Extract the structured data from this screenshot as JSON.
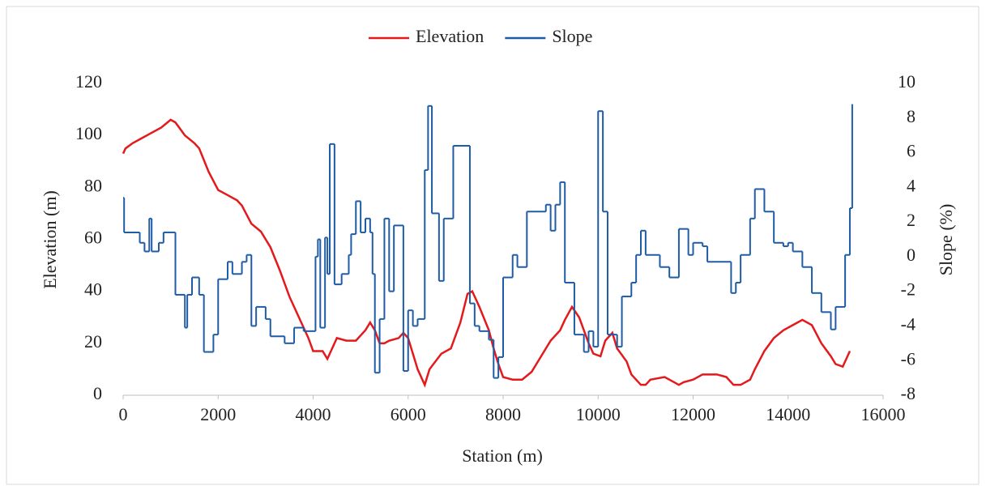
{
  "chart_data": {
    "type": "line",
    "x_label": "Station (m)",
    "y_label": "Elevation (m)",
    "y2_label": "Slope (%)",
    "xlim": [
      0,
      16000
    ],
    "xticks": [
      0,
      2000,
      4000,
      6000,
      8000,
      10000,
      12000,
      14000,
      16000
    ],
    "ylim": [
      0,
      120
    ],
    "yticks": [
      0,
      20,
      40,
      60,
      80,
      100,
      120
    ],
    "y2lim": [
      -8,
      10
    ],
    "y2ticks": [
      -8,
      -6,
      -4,
      -2,
      0,
      2,
      4,
      6,
      8,
      10
    ],
    "legend": "top",
    "series": [
      {
        "name": "Elevation",
        "color": "#e3191c",
        "style": "line",
        "x": [
          0,
          50,
          200,
          400,
          600,
          800,
          1000,
          1100,
          1300,
          1500,
          1600,
          1800,
          2000,
          2200,
          2400,
          2500,
          2700,
          2900,
          3100,
          3300,
          3500,
          3700,
          3900,
          4000,
          4200,
          4300,
          4400,
          4500,
          4700,
          4900,
          5100,
          5200,
          5300,
          5400,
          5500,
          5600,
          5800,
          5900,
          6000,
          6100,
          6200,
          6350,
          6450,
          6700,
          6900,
          7100,
          7250,
          7350,
          7500,
          7700,
          7800,
          7900,
          8000,
          8200,
          8400,
          8600,
          8800,
          9000,
          9200,
          9300,
          9450,
          9600,
          9800,
          9900,
          10050,
          10150,
          10300,
          10400,
          10600,
          10700,
          10900,
          11000,
          11100,
          11400,
          11600,
          11700,
          11800,
          12000,
          12200,
          12500,
          12700,
          12850,
          13000,
          13200,
          13300,
          13500,
          13700,
          13900,
          14100,
          14300,
          14500,
          14700,
          14900,
          15000,
          15150,
          15300
        ],
        "values": [
          93,
          95,
          97,
          99,
          101,
          103,
          106,
          105,
          100,
          97,
          95,
          86,
          79,
          77,
          75,
          73,
          66,
          63,
          57,
          48,
          38,
          30,
          22,
          17,
          17,
          14,
          18,
          22,
          21,
          21,
          25,
          28,
          25,
          20,
          20,
          21,
          22,
          24,
          22,
          16,
          10,
          4,
          10,
          16,
          18,
          28,
          39,
          40,
          34,
          25,
          18,
          12,
          7,
          6,
          6,
          9,
          15,
          21,
          25,
          29,
          34,
          30,
          20,
          16,
          15,
          21,
          24,
          18,
          13,
          8,
          4,
          4,
          6,
          7,
          5,
          4,
          5,
          6,
          8,
          8,
          7,
          4,
          4,
          6,
          10,
          17,
          22,
          25,
          27,
          29,
          27,
          20,
          15,
          12,
          11,
          17
        ]
      },
      {
        "name": "Slope",
        "color": "#1f5ca6",
        "style": "step",
        "axis": "y2",
        "x": [
          0,
          20,
          350,
          450,
          550,
          600,
          750,
          850,
          1100,
          1300,
          1350,
          1450,
          1600,
          1700,
          1900,
          2000,
          2200,
          2300,
          2500,
          2600,
          2700,
          2800,
          3000,
          3100,
          3400,
          3600,
          3800,
          4050,
          4100,
          4150,
          4250,
          4300,
          4350,
          4450,
          4600,
          4750,
          4800,
          4900,
          5000,
          5100,
          5200,
          5250,
          5300,
          5400,
          5500,
          5600,
          5700,
          5900,
          6000,
          6100,
          6200,
          6350,
          6420,
          6500,
          6650,
          6750,
          6950,
          7300,
          7400,
          7500,
          7700,
          7800,
          7900,
          8000,
          8200,
          8300,
          8500,
          8900,
          9000,
          9100,
          9200,
          9300,
          9500,
          9700,
          9800,
          9900,
          10000,
          10100,
          10200,
          10400,
          10500,
          10700,
          10800,
          10900,
          11000,
          11300,
          11500,
          11700,
          11900,
          12000,
          12200,
          12300,
          12800,
          12900,
          13000,
          13200,
          13300,
          13500,
          13700,
          13900,
          14000,
          14100,
          14300,
          14500,
          14700,
          14900,
          15000,
          15200,
          15300,
          15350
        ],
        "values": [
          3.4,
          1.4,
          0.8,
          0.3,
          2.2,
          0.3,
          0.8,
          1.4,
          -2.2,
          -4.1,
          -2.2,
          -1.2,
          -2.2,
          -5.5,
          -4.5,
          -1.3,
          -0.3,
          -1.0,
          -0.3,
          0.1,
          -4.0,
          -2.9,
          -3.6,
          -4.6,
          -5.0,
          -4.1,
          -4.3,
          0.0,
          1.0,
          -4.1,
          1.1,
          -1.0,
          6.5,
          -1.6,
          -1.0,
          0.1,
          1.3,
          3.2,
          1.4,
          2.2,
          1.4,
          -1.0,
          -6.7,
          -3.6,
          2.2,
          -2.0,
          1.8,
          -6.6,
          -3.1,
          -4.0,
          -3.6,
          5.0,
          8.7,
          2.5,
          -1.4,
          2.2,
          6.4,
          -2.7,
          -4.0,
          -4.3,
          -4.8,
          -7.0,
          -5.8,
          -1.2,
          0.1,
          -0.6,
          2.6,
          3.0,
          1.5,
          3.0,
          4.3,
          -1.5,
          -4.5,
          -5.5,
          -4.3,
          -5.2,
          8.4,
          2.6,
          -4.5,
          -5.2,
          -2.3,
          -1.5,
          0.1,
          1.5,
          0.1,
          -0.6,
          -1.2,
          1.6,
          0.1,
          0.8,
          0.6,
          -0.3,
          -2.1,
          -1.5,
          0.1,
          2.2,
          3.9,
          2.6,
          0.8,
          0.6,
          0.8,
          0.3,
          -0.6,
          -2.1,
          -3.2,
          -4.2,
          -2.9,
          0.1,
          2.8,
          8.8
        ]
      }
    ]
  }
}
